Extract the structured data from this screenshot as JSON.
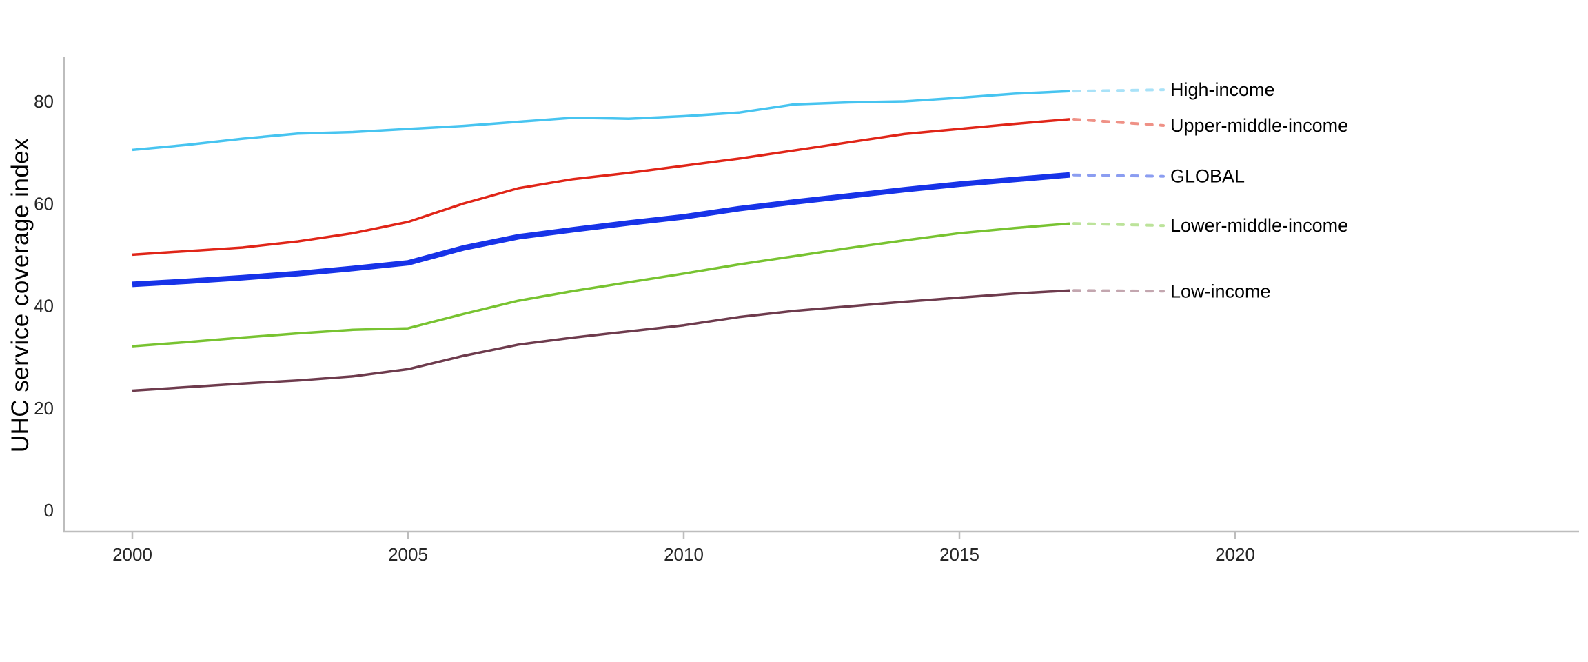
{
  "chart_data": {
    "type": "line",
    "title": "",
    "xlabel": "",
    "ylabel": "UHC service coverage index",
    "x": [
      2000,
      2001,
      2002,
      2003,
      2004,
      2005,
      2006,
      2007,
      2008,
      2009,
      2010,
      2011,
      2012,
      2013,
      2014,
      2015,
      2016,
      2017
    ],
    "x_tick_labels": [
      "2000",
      "2005",
      "2010",
      "2015",
      "2020"
    ],
    "x_ticks": [
      2000,
      2005,
      2010,
      2015,
      2020
    ],
    "y_tick_labels": [
      "0",
      "20",
      "40",
      "60",
      "80"
    ],
    "y_ticks": [
      0,
      20,
      40,
      60,
      80
    ],
    "ylim": [
      0,
      88
    ],
    "xlim": [
      2000,
      2026
    ],
    "grid": false,
    "legend_position": "end-of-line-labels-right",
    "axis_color": "#bdbdbd",
    "series": [
      {
        "name": "High-income",
        "color": "#47C4F0",
        "leader_color": "#A9E2F8",
        "line_width": 3.5,
        "values": [
          70.5,
          71.5,
          72.7,
          73.7,
          74.0,
          74.6,
          75.2,
          76.0,
          76.8,
          76.6,
          77.1,
          77.8,
          79.4,
          79.8,
          80.0,
          80.7,
          81.5,
          82.0
        ]
      },
      {
        "name": "Upper-middle-income",
        "color": "#E02518",
        "leader_color": "#EF9186",
        "line_width": 3.5,
        "values": [
          50.0,
          50.7,
          51.4,
          52.6,
          54.2,
          56.4,
          60.0,
          63.0,
          64.8,
          66.0,
          67.4,
          68.8,
          70.4,
          72.0,
          73.6,
          74.6,
          75.6,
          76.5
        ]
      },
      {
        "name": "GLOBAL",
        "color": "#1733E8",
        "leader_color": "#8B9DF1",
        "line_width": 8,
        "values": [
          44.2,
          44.8,
          45.5,
          46.3,
          47.3,
          48.4,
          51.3,
          53.5,
          54.9,
          56.2,
          57.4,
          59.0,
          60.3,
          61.5,
          62.7,
          63.8,
          64.7,
          65.6
        ]
      },
      {
        "name": "Lower-middle-income",
        "color": "#78C331",
        "leader_color": "#BCE39A",
        "line_width": 3.5,
        "values": [
          32.1,
          32.9,
          33.8,
          34.6,
          35.3,
          35.6,
          38.4,
          41.0,
          42.9,
          44.6,
          46.3,
          48.1,
          49.7,
          51.3,
          52.8,
          54.2,
          55.2,
          56.1
        ]
      },
      {
        "name": "Low-income",
        "color": "#6E3B4D",
        "leader_color": "#C3A6AF",
        "line_width": 3.5,
        "values": [
          23.4,
          24.1,
          24.8,
          25.4,
          26.2,
          27.6,
          30.2,
          32.4,
          33.8,
          35.0,
          36.2,
          37.8,
          39.0,
          39.9,
          40.8,
          41.6,
          42.4,
          43.0
        ]
      }
    ]
  }
}
